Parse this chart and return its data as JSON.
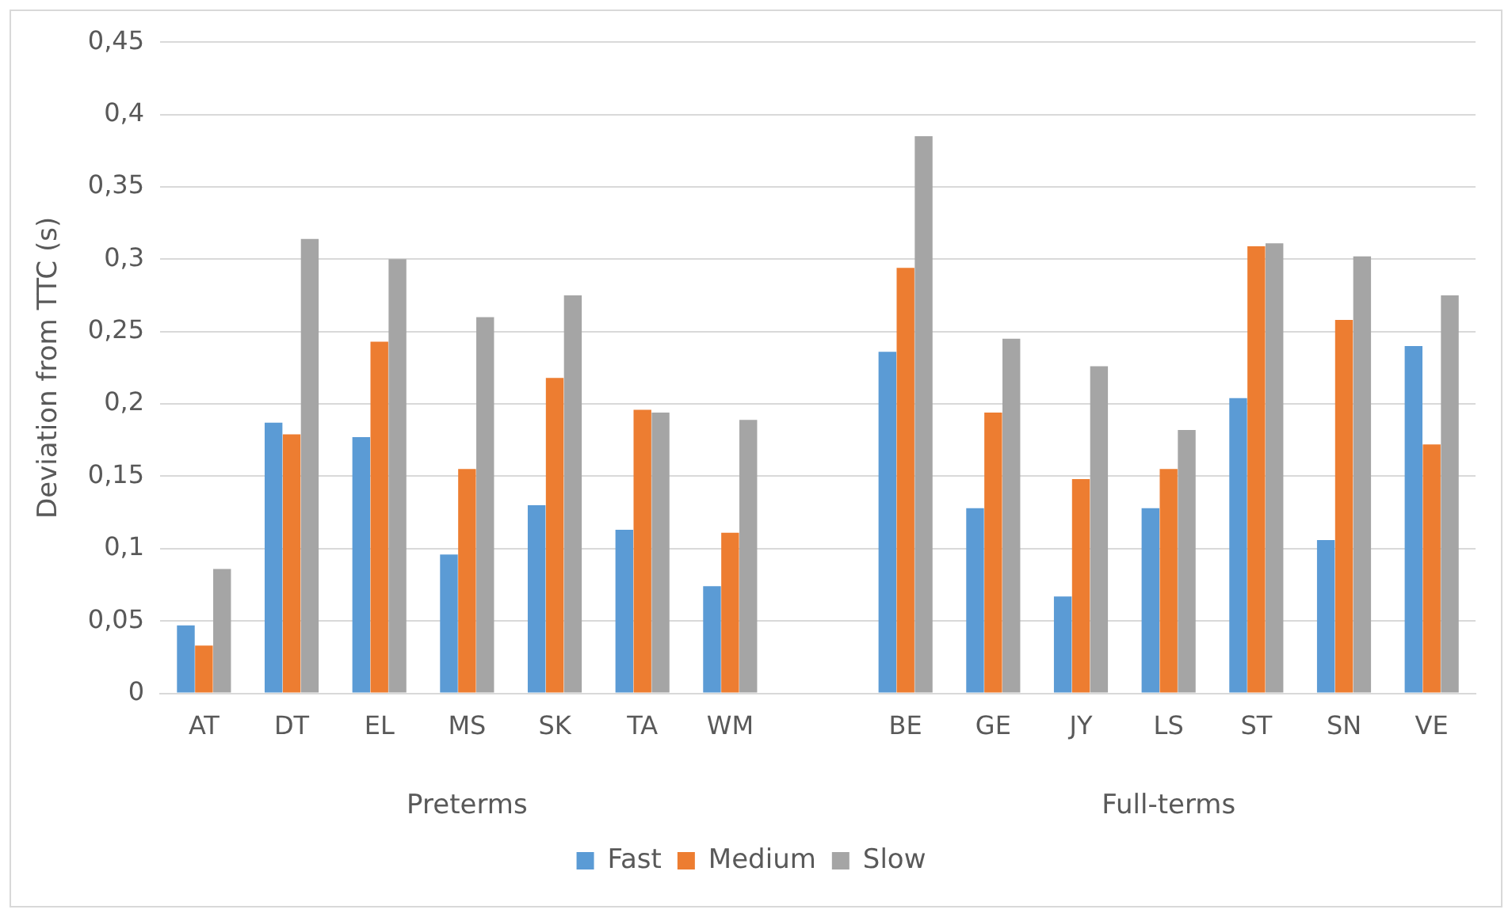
{
  "chart_data": {
    "type": "bar",
    "ylabel": "Deviation from TTC (s)",
    "categories": [
      "AT",
      "DT",
      "EL",
      "MS",
      "SK",
      "TA",
      "WM",
      null,
      "BE",
      "GE",
      "JY",
      "LS",
      "ST",
      "SN",
      "VE"
    ],
    "series": [
      {
        "name": "Fast",
        "color": "#5b9bd5",
        "values": [
          0.047,
          0.187,
          0.177,
          0.096,
          0.13,
          0.113,
          0.074,
          null,
          0.236,
          0.128,
          0.067,
          0.128,
          0.204,
          0.106,
          0.24
        ]
      },
      {
        "name": "Medium",
        "color": "#ed7d31",
        "values": [
          0.033,
          0.179,
          0.243,
          0.155,
          0.218,
          0.196,
          0.111,
          null,
          0.294,
          0.194,
          0.148,
          0.155,
          0.309,
          0.258,
          0.172
        ]
      },
      {
        "name": "Slow",
        "color": "#a5a5a5",
        "values": [
          0.086,
          0.314,
          0.3,
          0.26,
          0.275,
          0.194,
          0.189,
          null,
          0.385,
          0.245,
          0.226,
          0.182,
          0.311,
          0.302,
          0.275
        ]
      }
    ],
    "ylim": [
      0,
      0.45
    ],
    "yticks": [
      {
        "value": 0,
        "label": "0"
      },
      {
        "value": 0.05,
        "label": "0,05"
      },
      {
        "value": 0.1,
        "label": "0,1"
      },
      {
        "value": 0.15,
        "label": "0,15"
      },
      {
        "value": 0.2,
        "label": "0,2"
      },
      {
        "value": 0.25,
        "label": "0,25"
      },
      {
        "value": 0.3,
        "label": "0,3"
      },
      {
        "value": 0.35,
        "label": "0,35"
      },
      {
        "value": 0.4,
        "label": "0,4"
      },
      {
        "value": 0.45,
        "label": "0,45"
      }
    ],
    "annotations": [
      "Preterms",
      "Full-terms"
    ],
    "grid": "y",
    "legend": "bottom"
  }
}
